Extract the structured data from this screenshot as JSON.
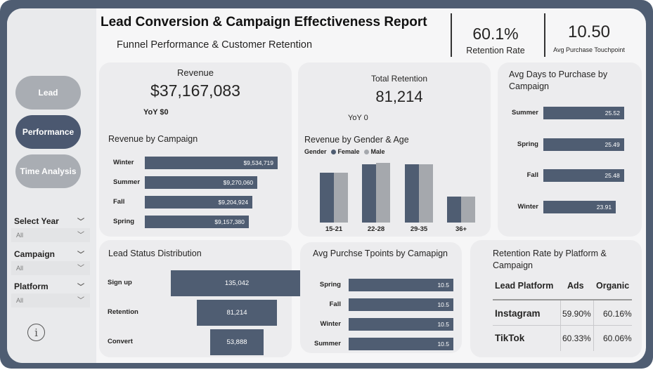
{
  "header": {
    "title": "Lead Conversion & Campaign Effectiveness Report",
    "subtitle": "Funnel Performance & Customer Retention",
    "kpi1_value": "60.1%",
    "kpi1_label": "Retention Rate",
    "kpi2_value": "10.50",
    "kpi2_label": "Avg Purchase Touchpoint"
  },
  "nav": {
    "lead": "Lead",
    "performance": "Performance",
    "time_analysis": "Time Analysis"
  },
  "slicers": [
    {
      "label": "Select Year",
      "value": "All"
    },
    {
      "label": "Campaign",
      "value": "All"
    },
    {
      "label": "Platform",
      "value": "All"
    }
  ],
  "revenue": {
    "label": "Revenue",
    "value": "$37,167,083",
    "yoy": "YoY $0"
  },
  "total_retention": {
    "label": "Total Retention",
    "value": "81,214",
    "yoy": "YoY 0"
  },
  "colors": {
    "primary": "#4f5d72",
    "secondary": "#a5a8ad",
    "nav_inactive": "#a9adb3",
    "nav_active": "#4b5870"
  },
  "chart_data": [
    {
      "type": "bar",
      "orientation": "horizontal",
      "title": "Revenue by Campaign",
      "categories": [
        "Winter",
        "Summer",
        "Fall",
        "Spring"
      ],
      "values": [
        9534719,
        9270060,
        9204924,
        9157380
      ],
      "value_labels": [
        "$9,534,719",
        "$9,270,060",
        "$9,204,924",
        "$9,157,380"
      ]
    },
    {
      "type": "bar",
      "title": "Revenue by Gender & Age",
      "legend_title": "Gender",
      "categories": [
        "15-21",
        "22-28",
        "29-35",
        "36+"
      ],
      "series": [
        {
          "name": "Female",
          "values": [
            2.95,
            3.45,
            3.45,
            1.55
          ]
        },
        {
          "name": "Male",
          "values": [
            2.95,
            3.55,
            3.45,
            1.55
          ]
        }
      ]
    },
    {
      "type": "bar",
      "orientation": "horizontal",
      "title": "Avg Days to Purchase by Campaign",
      "categories": [
        "Summer",
        "Spring",
        "Fall",
        "Winter"
      ],
      "values": [
        25.52,
        25.49,
        25.48,
        23.91
      ],
      "value_labels": [
        "25.52",
        "25.49",
        "25.48",
        "23.91"
      ]
    },
    {
      "type": "bar",
      "orientation": "funnel",
      "title": "Lead Status Distribution",
      "categories": [
        "Sign up",
        "Retention",
        "Convert"
      ],
      "values": [
        135042,
        81214,
        53888
      ],
      "value_labels": [
        "135,042",
        "81,214",
        "53,888"
      ]
    },
    {
      "type": "bar",
      "orientation": "horizontal",
      "title": "Avg Purchse Tpoints by Camapign",
      "categories": [
        "Spring",
        "Fall",
        "Winter",
        "Summer"
      ],
      "values": [
        10.5,
        10.5,
        10.5,
        10.5
      ],
      "value_labels": [
        "10.5",
        "10.5",
        "10.5",
        "10.5"
      ]
    },
    {
      "type": "table",
      "title": "Retention Rate by Platform & Campaign",
      "columns": [
        "Lead Platform",
        "Ads",
        "Organic"
      ],
      "rows": [
        [
          "Instagram",
          "59.90%",
          "60.16%"
        ],
        [
          "TikTok",
          "60.33%",
          "60.06%"
        ]
      ]
    }
  ]
}
